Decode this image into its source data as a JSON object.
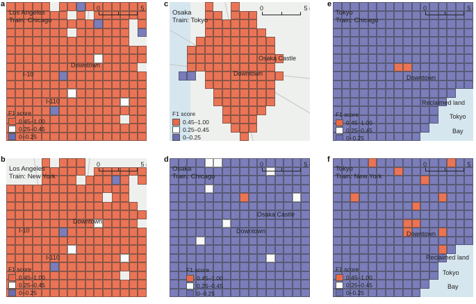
{
  "colors": {
    "high": "#e96948",
    "mid": "#ffffff",
    "low": "#6b6db3",
    "base": "#eef0ee",
    "water": "#d6e6ef"
  },
  "legend": {
    "title": "F1 score",
    "items": [
      {
        "range": "0.45–1.00",
        "level": "high"
      },
      {
        "range": "0.25–0.45",
        "level": "mid"
      },
      {
        "range": "0–0.25",
        "level": "low"
      }
    ]
  },
  "scalebar": {
    "start": "0",
    "end": "5 (km)"
  },
  "panels": [
    {
      "letter": "a",
      "city": "Los Angeles",
      "train": "Train: Chicago",
      "landmarks": [
        "Downtown",
        "I-10",
        "I-110"
      ],
      "grid": [
        "HHHHHEHHLHHHHHHH",
        "HHHHHHHEHEHHHHHH",
        "HHHHHHHHHHLHHHEH",
        "HHHHHHHEHHHHHHEL",
        "HHHHHHHHHHHHHHEE",
        "HHHHHHHHHHHHHHHH",
        "HHHHHHHHHHMHHHHH",
        "HHHHHHHHHHHHHHHE",
        "HHHHHHLHHHHHHHHH",
        "HHHHHHHHHHHHHHHH",
        "HHHHHHHMHHHHHHHH",
        "HHHHHHHHHHHHHMHH",
        "HHHHHLHHHHHHHHHH",
        "HHHHHHHHHHHHHEHH",
        "HHHHHHHHHHHHHHHH",
        "HHHHHHHHHHHHHHHH"
      ]
    },
    {
      "letter": "b",
      "city": "Los Angeles",
      "train": "Train: New York",
      "landmarks": [
        "Downtown",
        "I-10",
        "I-110"
      ],
      "grid": [
        "EEEEHEHHHEEEEEEE",
        "EEEEHHHHHEHHHHHH",
        "EEEEHHHHEHHHLHEH",
        "HHHHHHHHHHHHHHEE",
        "HHHHHHHHHHHEHHEE",
        "HHHHHHHHHHHHHHHE",
        "HHHHHHHHHHHHHHHH",
        "HHHHHHHHHHMHHHHE",
        "HHHHHHLHHHHHHHHH",
        "HHHHHHHHHHHHHHHH",
        "HHHHHHHMHHHHHHHH",
        "HHHHHHHHHHHHHMHH",
        "HHHHHLHHHHHHHHHH",
        "HHHHHHHHHHHHHEHH",
        "HHHHHHHHHHHHHHHH",
        "HHHHHHHHHHHHHHHH"
      ]
    },
    {
      "letter": "c",
      "city": "Osaka",
      "train": "Train: Tokyo",
      "landmarks": [
        "Osaka Castle",
        "Downtown"
      ],
      "grid": [
        "EEEEHEEHEEEEEEEE",
        "EEEEHHEHHHEEEEEE",
        "EEEEHHHHHHEEEEEE",
        "EEEEHHHHHHHEEEEE",
        "EEEHHHHHHHHHEEEE",
        "EEHHHHHHHHHHEEEE",
        "EEHHHHHHHHHHHEEE",
        "EEHHHHHHHHHHEEEE",
        "ELLEHHHHHHHHHEEE",
        "EEEEHHHHHHHHEEEE",
        "EEEEEHHHHHHHEEEE",
        "EEEEEHHHHHHHEEEE",
        "EEEEEEHHHHHEEEEE",
        "EEEEEEHHHHEEEEEE",
        "EEEEEEEHHHEEEEEE",
        "EEEEEEEEHEEEEEEE"
      ]
    },
    {
      "letter": "d",
      "city": "Osaka",
      "train": "Train: Chicago",
      "landmarks": [
        "Osaka Castle",
        "Downtown"
      ],
      "grid": [
        "LLLLMMLLLLLLLLLL",
        "LLLLLLLLLLLMLLLL",
        "LLLLLLLLLLLLLLLL",
        "LLLLMLLLLLLLLLLL",
        "LLLLLLLLHLLLLLML",
        "LLLLLLLLLLLLLLLL",
        "LLLLLLLLLLLLLLLL",
        "LLLLLLMLLLLLLLLL",
        "LLLLLLLLLLLLLLLL",
        "LLLMLLLLLLLLLLLL",
        "LLLLLLLLLLLLLLLL",
        "LLLLLLLLLLLMLLLL",
        "LLLLLLLLLLLLLLLL",
        "LLLLLLLLLLLLLLLL",
        "LLLLLLLLLLLLLLLL",
        "LLLLLLLLLLLLLLLL"
      ]
    },
    {
      "letter": "e",
      "city": "Tokyo",
      "train": "Train: Chicago",
      "landmarks": [
        "Downtown",
        "Reclaimed land",
        "Tokyo",
        "Bay"
      ],
      "grid": [
        "LLLLLLLLLLLLLLLL",
        "LLLLLLLLLLLLLLLL",
        "LLLLLLLLLLLLLLLL",
        "LLLLLLLLLLLLLLLL",
        "LLLLLLLLLLLLLLLL",
        "LLLLLLLLLLLLLLLL",
        "LLLLLLLLLLLLLLLL",
        "LLLLLLLHHLLLLLLL",
        "LLLLLLLLLLLLLLLL",
        "LLLLLLLLLLLLLLLL",
        "LLLLLLLLLLLLLLEE",
        "LLLLLLLLLLLLLEEE",
        "LLLLLLLLLLLLEEEE",
        "LLLLLLLLLLLLEEEE",
        "LLLLLLLLLLLEEEEE",
        "LLLLLLLLLLEEEEEE"
      ]
    },
    {
      "letter": "f",
      "city": "Tokyo",
      "train": "Train: New York",
      "landmarks": [
        "Downtown",
        "Reclaimed land",
        "Tokyo",
        "Bay"
      ],
      "grid": [
        "LLLLHLLLLLLLLHLL",
        "LLLLLLLHLLLLLLLL",
        "LLLLLLLLLLHLLLLL",
        "LLLLLLLLLLLLLLLL",
        "LLHLLLLLLLLLHLLL",
        "LLLLLLLLLHLLLLLL",
        "LLLLLLLLLLLLLLLL",
        "LLLLLLLLHHLLLLLL",
        "LLLLLLLLHLLLHLLL",
        "LLLLLLLLLLLLLLLL",
        "LLLLLLLLLLLLHLEE",
        "LLLLLLLLLLLLLEEE",
        "LLLLLLLLLLLLEEEE",
        "LLLLLLLLLLLLEEEE",
        "LLLLLLLLLLLEEEEE",
        "LLLLLLLLLLEEEEEE"
      ]
    }
  ]
}
